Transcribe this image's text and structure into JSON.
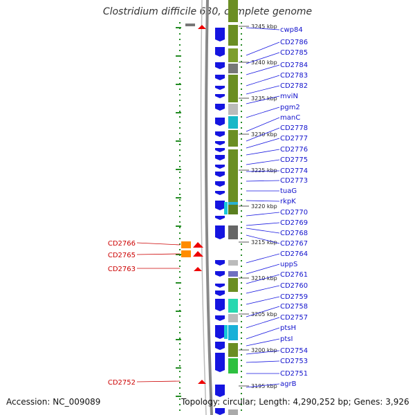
{
  "title": "Clostridium difficile 630, complete genome",
  "footer": {
    "accession": "Accession: NC_009089",
    "topology": "Topology: circular; Length: 4,290,252 bp; Genes: 3,926"
  },
  "colors": {
    "forward_strand": "#1515e0",
    "reverse_strand_label": "#cc0000",
    "backbone": "#888888",
    "cog_function": "#6b8e23",
    "tick": "#228b22"
  },
  "kbp_ticks": [
    "3245 kbp",
    "3240 kbp",
    "3235 kbp",
    "3230 kbp",
    "3225 kbp",
    "3220 kbp",
    "3215 kbp",
    "3210 kbp",
    "3205 kbp",
    "3200 kbp",
    "3195 kbp"
  ],
  "right_labels": [
    "cwp84",
    "CD2786",
    "CD2785",
    "CD2784",
    "CD2783",
    "CD2782",
    "mviN",
    "pgm2",
    "manC",
    "CD2778",
    "CD2777",
    "CD2776",
    "CD2775",
    "CD2774",
    "CD2773",
    "tuaG",
    "rkpK",
    "CD2770",
    "CD2769",
    "CD2768",
    "CD2767",
    "CD2764",
    "uppS",
    "CD2761",
    "CD2760",
    "CD2759",
    "CD2758",
    "CD2757",
    "ptsH",
    "ptsI",
    "CD2754",
    "CD2753",
    "CD2751",
    "agrB"
  ],
  "left_labels": [
    "CD2766",
    "CD2765",
    "CD2763",
    "CD2752"
  ]
}
